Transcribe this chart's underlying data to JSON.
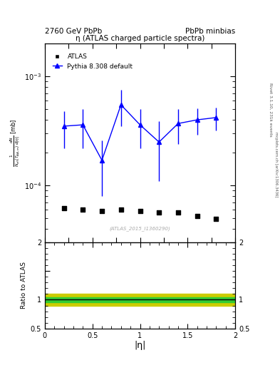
{
  "title_top_left": "2760 GeV PbPb",
  "title_top_right": "PbPb minbias",
  "plot_title": "η (ATLAS charged particle spectra)",
  "rivet_label": "Rivet 3.1.10, 231k events",
  "arxiv_label": "mcplots.cern.ch [arXiv:1306.3436]",
  "inspire_label": "(ATLAS_2015_I1360290)",
  "xlabel": "|η|",
  "ylabel_ratio": "Ratio to ATLAS",
  "xlim": [
    0,
    2
  ],
  "ylim_main_log": [
    3e-05,
    0.002
  ],
  "ylim_ratio": [
    0.5,
    2.0
  ],
  "atlas_x": [
    0.2,
    0.4,
    0.6,
    0.8,
    1.0,
    1.2,
    1.4,
    1.6,
    1.8
  ],
  "atlas_y": [
    6.2e-05,
    6e-05,
    5.8e-05,
    6e-05,
    5.8e-05,
    5.6e-05,
    5.6e-05,
    5.2e-05,
    4.9e-05
  ],
  "pythia_x": [
    0.2,
    0.4,
    0.6,
    0.8,
    1.0,
    1.2,
    1.4,
    1.6,
    1.8
  ],
  "pythia_y": [
    0.00035,
    0.00036,
    0.00017,
    0.00055,
    0.00036,
    0.00025,
    0.00037,
    0.0004,
    0.00042
  ],
  "pythia_yerr_lo": [
    0.00013,
    0.00014,
    9e-05,
    0.0002,
    0.00014,
    0.00014,
    0.00013,
    0.00011,
    0.0001
  ],
  "pythia_yerr_hi": [
    0.00013,
    0.00014,
    9e-05,
    0.0002,
    0.00014,
    0.00014,
    0.00013,
    0.00011,
    0.0001
  ],
  "atlas_color": "black",
  "pythia_color": "blue",
  "ratio_line_color": "black",
  "ratio_green_band": [
    0.96,
    1.04
  ],
  "ratio_yellow_band": [
    0.9,
    1.1
  ],
  "green_color": "#33cc33",
  "yellow_color": "#cccc00",
  "background_color": "white"
}
